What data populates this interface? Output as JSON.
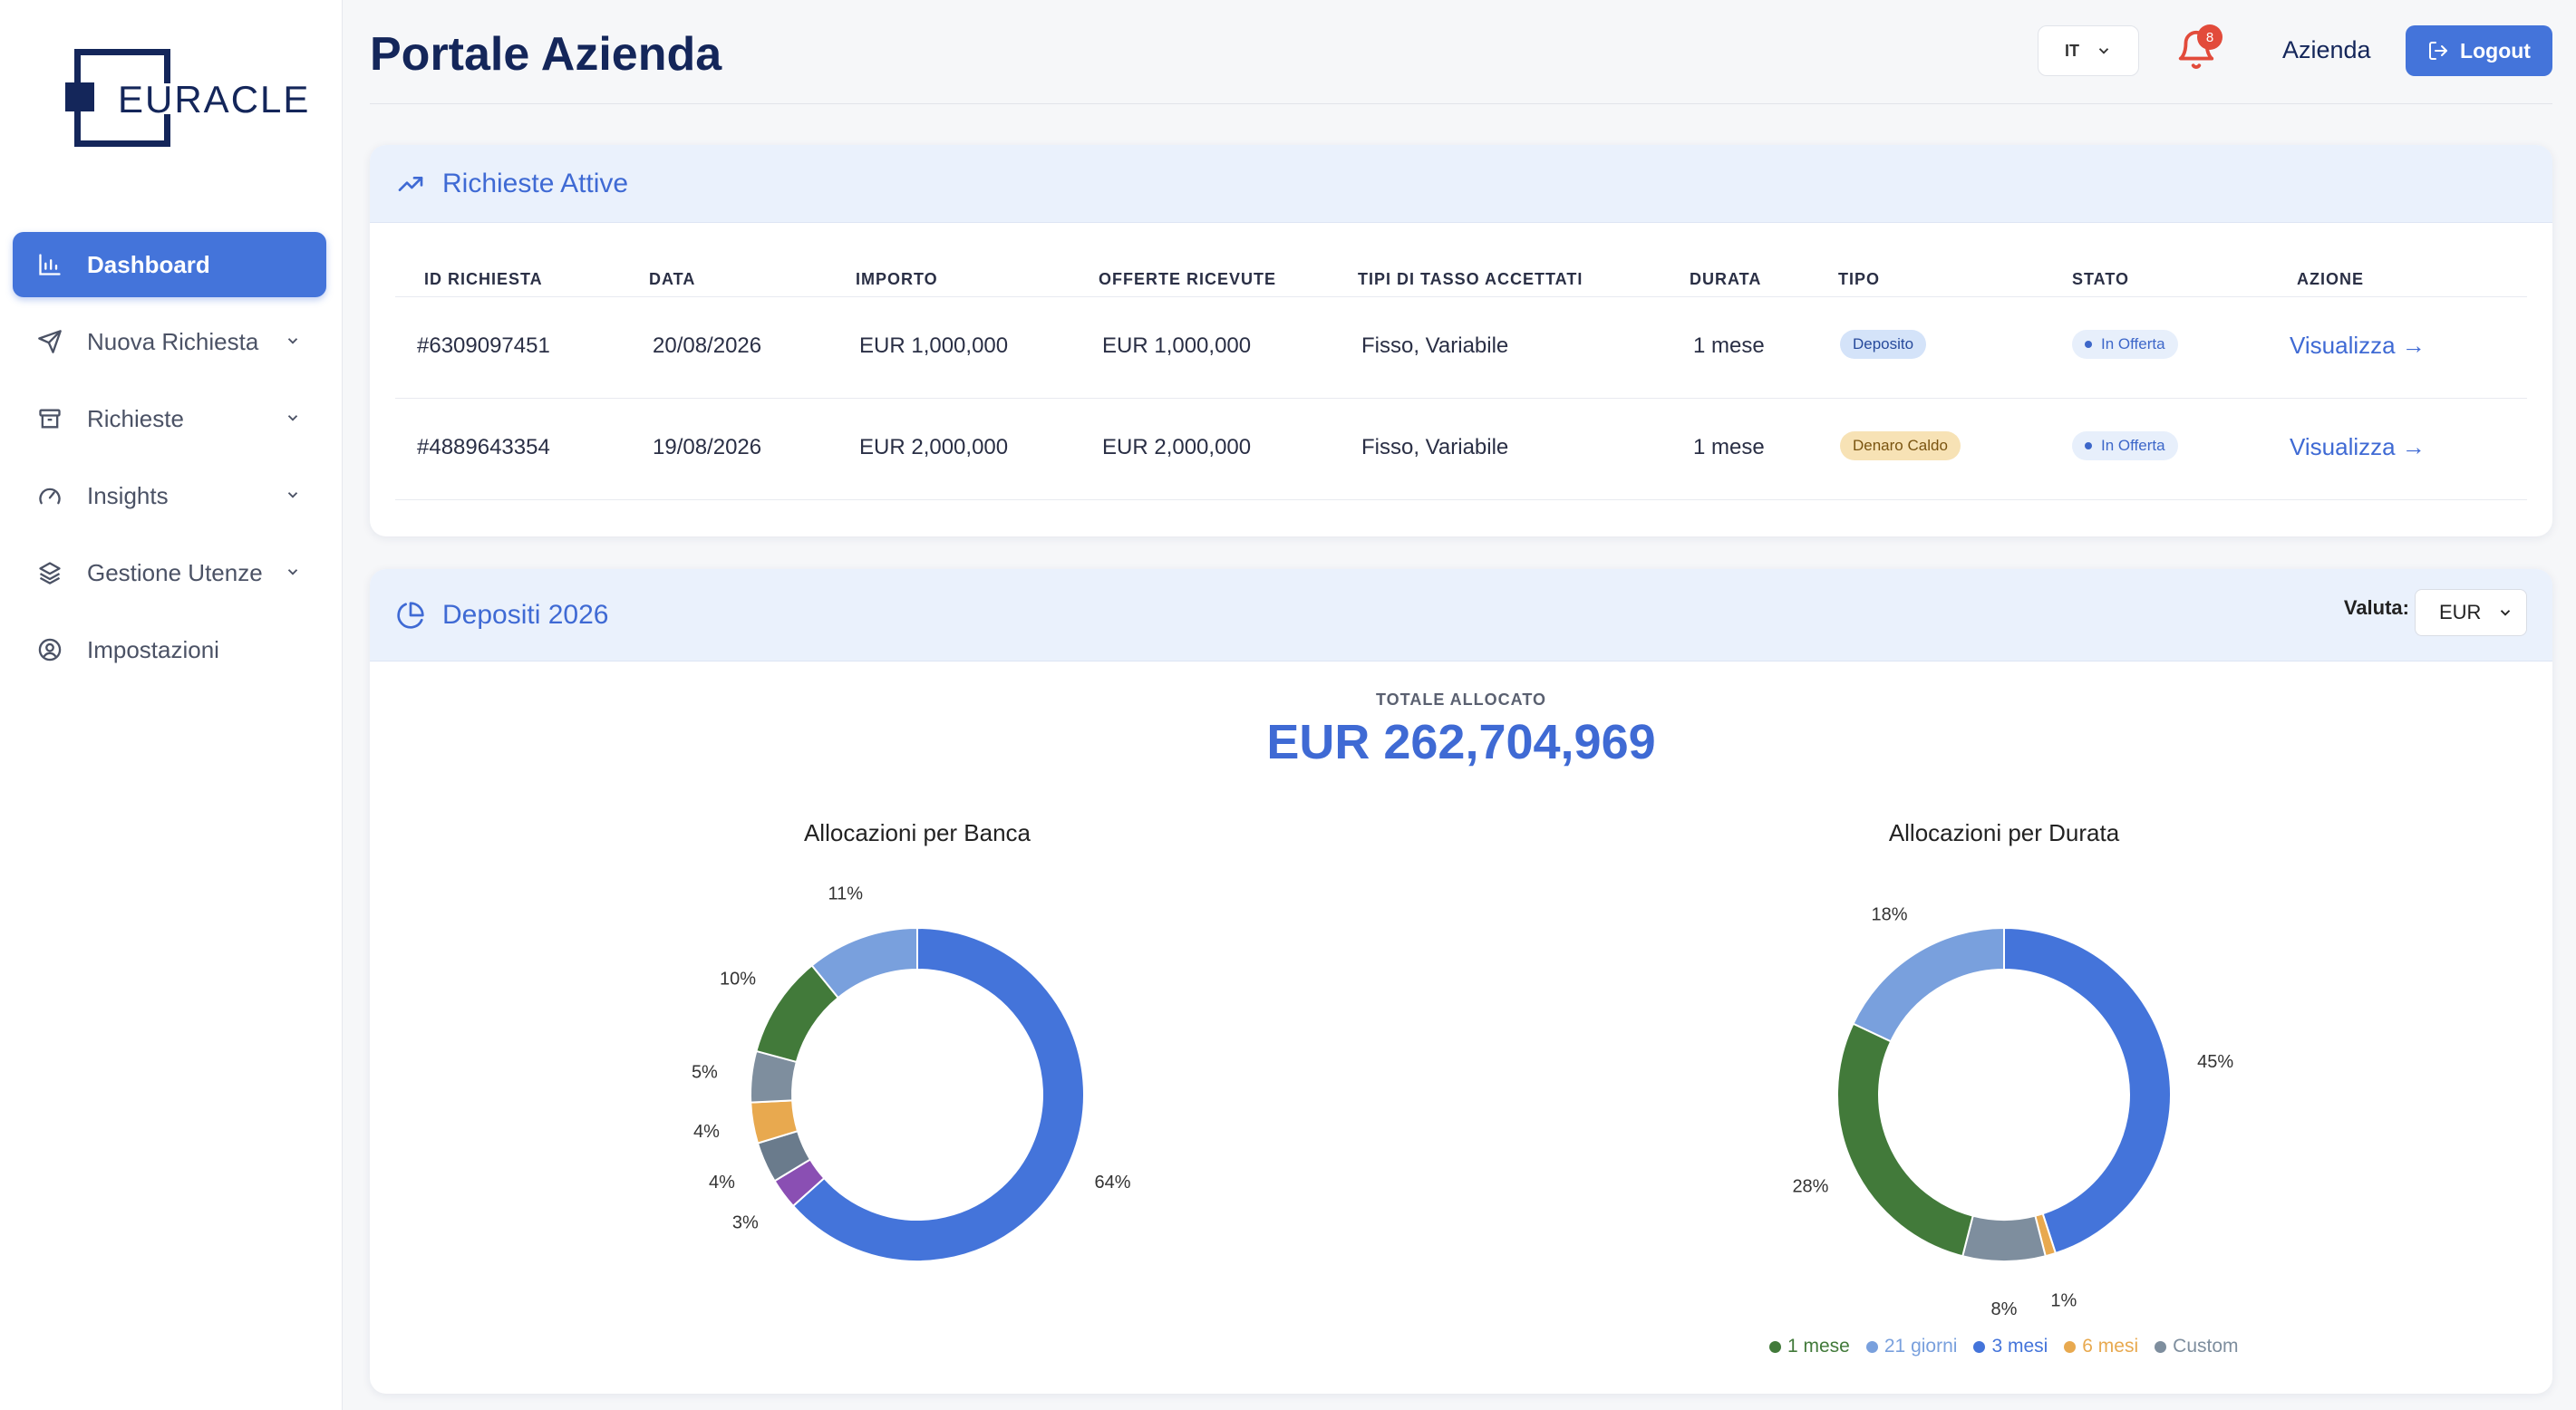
{
  "brand": {
    "logo_text": "EURACLE"
  },
  "sidebar": {
    "items": [
      {
        "label": "Dashboard",
        "icon": "bar-chart-icon",
        "active": true,
        "has_submenu": false
      },
      {
        "label": "Nuova Richiesta",
        "icon": "send-icon",
        "active": false,
        "has_submenu": true
      },
      {
        "label": "Richieste",
        "icon": "archive-icon",
        "active": false,
        "has_submenu": true
      },
      {
        "label": "Insights",
        "icon": "gauge-icon",
        "active": false,
        "has_submenu": true
      },
      {
        "label": "Gestione Utenze",
        "icon": "layers-icon",
        "active": false,
        "has_submenu": true
      },
      {
        "label": "Impostazioni",
        "icon": "user-circle-icon",
        "active": false,
        "has_submenu": false
      }
    ]
  },
  "header": {
    "title": "Portale Azienda",
    "language": "IT",
    "notifications_count": "8",
    "company_label": "Azienda",
    "logout_label": "Logout"
  },
  "active_requests": {
    "title": "Richieste Attive",
    "columns": [
      "ID RICHIESTA",
      "DATA",
      "IMPORTO",
      "OFFERTE RICEVUTE",
      "TIPI DI TASSO ACCETTATI",
      "DURATA",
      "TIPO",
      "STATO",
      "AZIONE"
    ],
    "rows": [
      {
        "id": "#6309097451",
        "date": "20/08/2026",
        "amount": "EUR 1,000,000",
        "offers": "EUR 1,000,000",
        "rate_types": "Fisso, Variabile",
        "duration": "1 mese",
        "type": "Deposito",
        "status": "In Offerta",
        "action": "Visualizza →"
      },
      {
        "id": "#4889643354",
        "date": "19/08/2026",
        "amount": "EUR 2,000,000",
        "offers": "EUR 2,000,000",
        "rate_types": "Fisso, Variabile",
        "duration": "1 mese",
        "type": "Denaro Caldo",
        "status": "In Offerta",
        "action": "Visualizza →"
      }
    ]
  },
  "deposits": {
    "title": "Depositi 2026",
    "currency_label": "Valuta:",
    "currency_value": "EUR",
    "total_label": "TOTALE ALLOCATO",
    "total_value": "EUR 262,704,969"
  },
  "chart_data": [
    {
      "type": "pie",
      "title": "Allocazioni per Banca",
      "values": [
        64,
        3,
        4,
        4,
        5,
        10,
        11
      ],
      "labels": [
        "64%",
        "3%",
        "4%",
        "4%",
        "5%",
        "10%",
        "11%"
      ],
      "colors": [
        "#4474da",
        "#8a4fb3",
        "#6a7b8c",
        "#e8a94f",
        "#7e8e9e",
        "#427a3a",
        "#79a0dd"
      ]
    },
    {
      "type": "pie",
      "title": "Allocazioni per Durata",
      "values": [
        45,
        1,
        8,
        28,
        18
      ],
      "labels": [
        "45%",
        "1%",
        "8%",
        "28%",
        "18%"
      ],
      "colors": [
        "#4474da",
        "#e8a94f",
        "#7e8e9e",
        "#427a3a",
        "#79a0dd"
      ],
      "legend": [
        {
          "name": "1 mese",
          "color": "#427a3a"
        },
        {
          "name": "21 giorni",
          "color": "#79a0dd"
        },
        {
          "name": "3 mesi",
          "color": "#4474da"
        },
        {
          "name": "6 mesi",
          "color": "#e8a94f"
        },
        {
          "name": "Custom",
          "color": "#7e8e9e"
        }
      ]
    }
  ]
}
